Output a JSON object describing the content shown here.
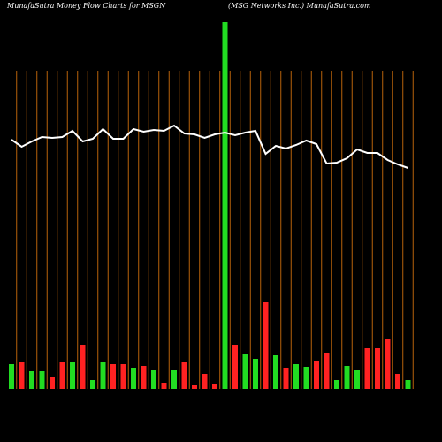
{
  "chart_data": {
    "type": "bar",
    "title": "MunafaSutra  Money Flow  Charts for MSGN",
    "subtitle": "(MSG Networks Inc.) MunafaSutra.com",
    "categories": [
      null,
      null,
      null,
      null,
      null,
      null,
      null,
      null,
      null,
      null,
      null,
      null,
      null,
      null,
      null,
      null,
      null,
      null,
      null,
      null,
      null,
      null,
      null,
      null,
      null,
      null,
      null,
      null,
      null,
      null,
      null,
      null,
      null,
      null,
      null,
      null,
      null,
      null,
      null,
      null
    ],
    "series": [
      {
        "values": [
          28,
          30,
          20,
          20,
          13,
          30,
          31,
          50,
          10,
          30,
          28,
          28,
          24,
          26,
          22,
          7,
          22,
          30,
          5,
          17,
          6,
          415,
          50,
          40,
          34,
          98,
          38,
          24,
          28,
          25,
          32,
          41,
          10,
          26,
          21,
          46,
          46,
          56,
          17,
          10
        ],
        "colors": [
          "#22dd22",
          "#ff2222",
          "#22dd22",
          "#22dd22",
          "#ff2222",
          "#ff2222",
          "#22dd22",
          "#ff2222",
          "#22dd22",
          "#22dd22",
          "#ff2222",
          "#ff2222",
          "#22dd22",
          "#ff2222",
          "#22dd22",
          "#ff2222",
          "#22dd22",
          "#ff2222",
          "#ff2222",
          "#ff2222",
          "#ff2222",
          "#22dd22",
          "#ff2222",
          "#22dd22",
          "#22dd22",
          "#ff2222",
          "#22dd22",
          "#ff2222",
          "#22dd22",
          "#22dd22",
          "#ff2222",
          "#ff2222",
          "#22dd22",
          "#22dd22",
          "#22dd22",
          "#ff2222",
          "#ff2222",
          "#ff2222",
          "#ff2222",
          "#22dd22"
        ]
      },
      {
        "type": "line",
        "color": "#ffffff",
        "values": [
          282,
          274,
          280,
          285,
          284,
          285,
          292,
          280,
          283,
          294,
          283,
          283,
          294,
          291,
          293,
          292,
          298,
          289,
          288,
          284,
          288,
          290,
          287,
          290,
          292,
          266,
          275,
          272,
          276,
          281,
          277,
          255,
          256,
          261,
          271,
          267,
          267,
          259,
          254,
          250
        ]
      }
    ],
    "ylim": [
      0,
      420
    ],
    "gridline_color": "#b8620a"
  }
}
